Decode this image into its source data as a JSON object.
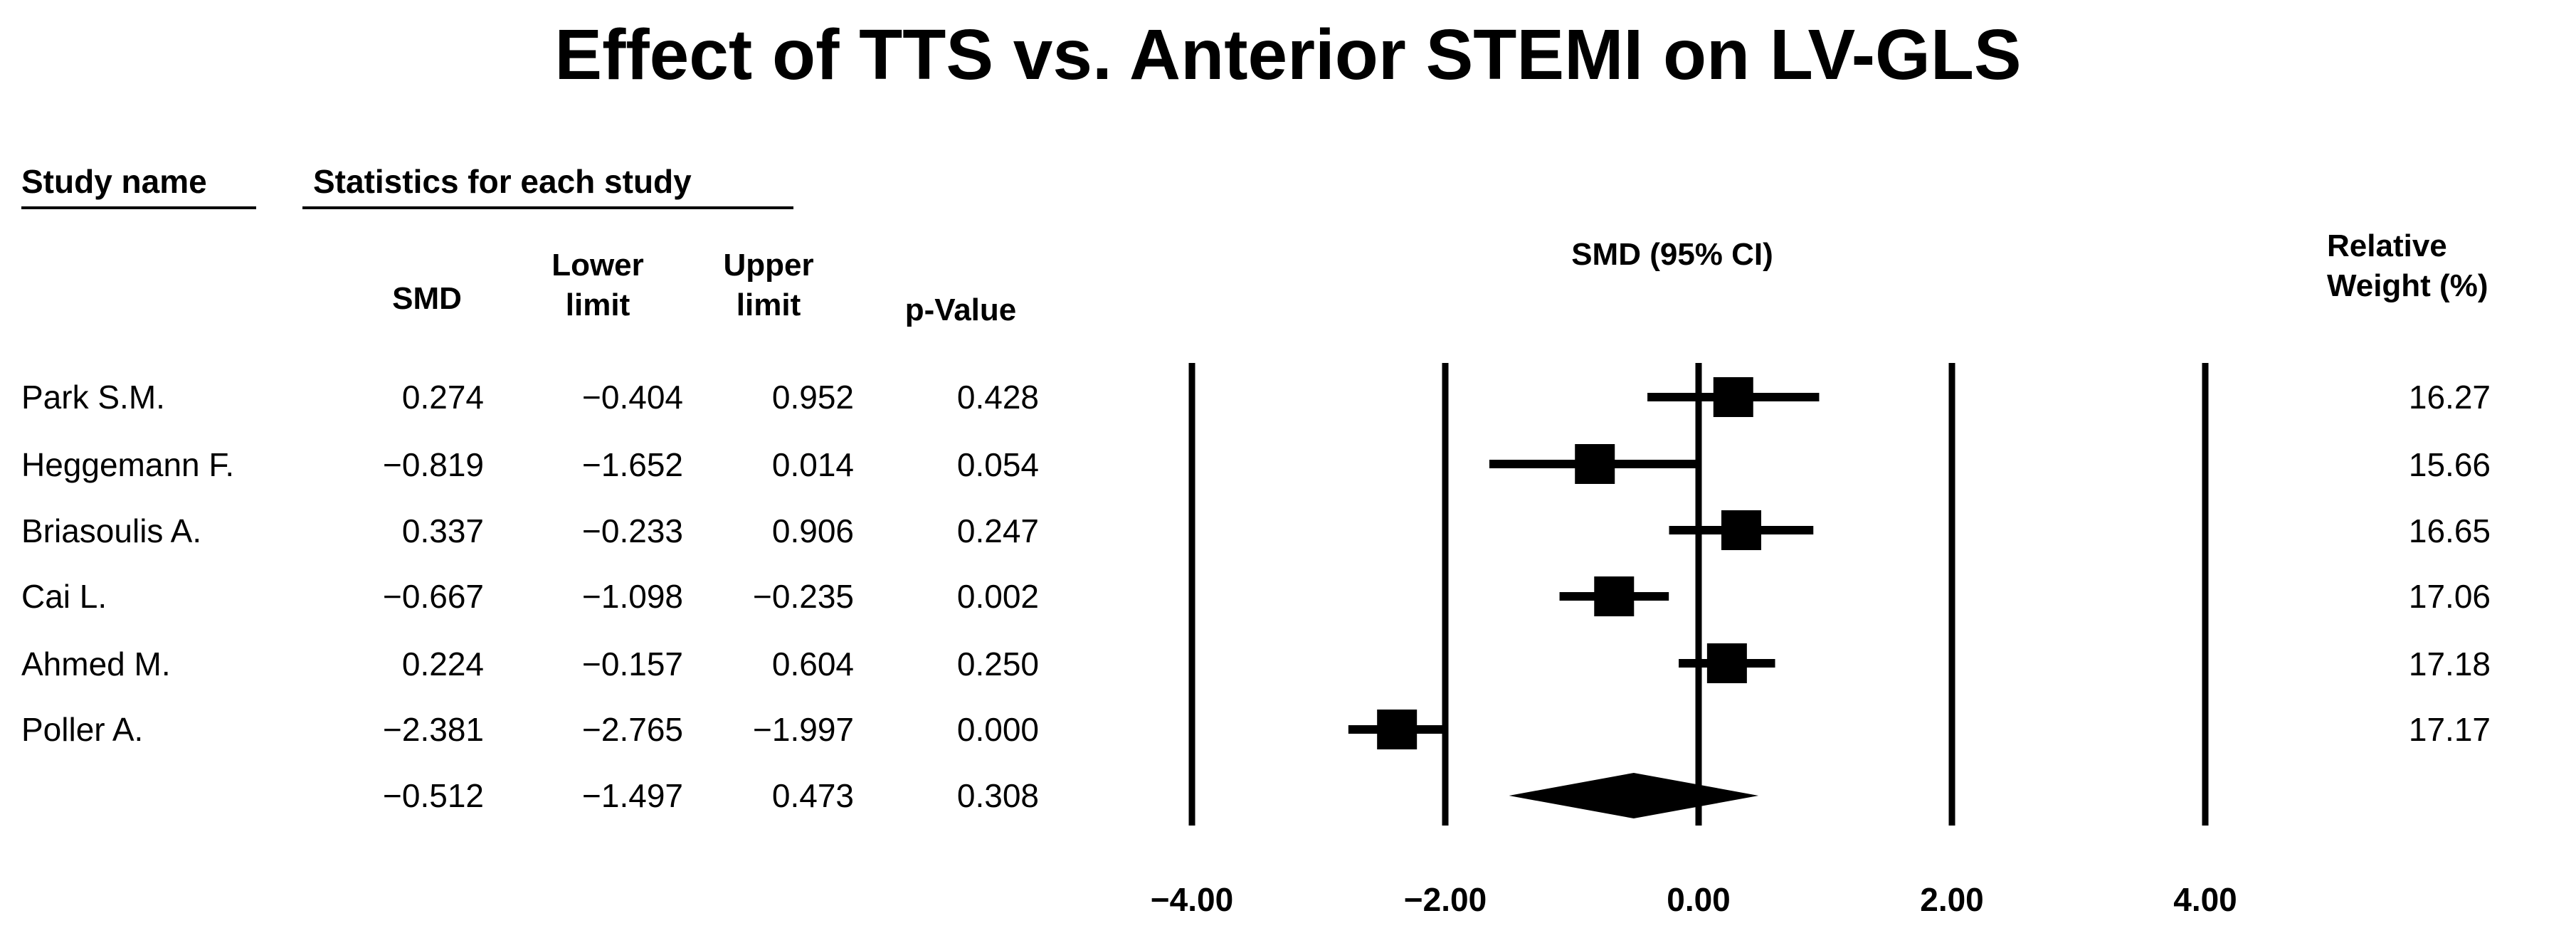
{
  "title": "Effect of TTS vs. Anterior STEMI on LV-GLS",
  "headers": {
    "study_name": "Study name",
    "statistics": "Statistics for each study",
    "smd": "SMD",
    "lower_1": "Lower",
    "lower_2": "limit",
    "upper_1": "Upper",
    "upper_2": "limit",
    "pvalue": "p-Value",
    "plot": "SMD (95% CI)",
    "weight_1": "Relative",
    "weight_2": "Weight (%)"
  },
  "rows": [
    {
      "name": "Park S.M.",
      "smd": "0.274",
      "lower": "−0.404",
      "upper": "0.952",
      "p": "0.428",
      "weight": "16.27"
    },
    {
      "name": "Heggemann F.",
      "smd": "−0.819",
      "lower": "−1.652",
      "upper": "0.014",
      "p": "0.054",
      "weight": "15.66"
    },
    {
      "name": "Briasoulis A.",
      "smd": "0.337",
      "lower": "−0.233",
      "upper": "0.906",
      "p": "0.247",
      "weight": "16.65"
    },
    {
      "name": "Cai L.",
      "smd": "−0.667",
      "lower": "−1.098",
      "upper": "−0.235",
      "p": "0.002",
      "weight": "17.06"
    },
    {
      "name": "Ahmed M.",
      "smd": "0.224",
      "lower": "−0.157",
      "upper": "0.604",
      "p": "0.250",
      "weight": "17.18"
    },
    {
      "name": "Poller A.",
      "smd": "−2.381",
      "lower": "−2.765",
      "upper": "−1.997",
      "p": "0.000",
      "weight": "17.17"
    }
  ],
  "summary": {
    "smd": "−0.512",
    "lower": "−1.497",
    "upper": "0.473",
    "p": "0.308"
  },
  "chart_data": {
    "type": "forest",
    "xlim": [
      -4,
      4
    ],
    "ticks": [
      -4,
      -2,
      0,
      2,
      4
    ],
    "tick_labels": [
      "−4.00",
      "−2.00",
      "0.00",
      "2.00",
      "4.00"
    ],
    "studies": [
      {
        "name": "Park S.M.",
        "smd": 0.274,
        "lower": -0.404,
        "upper": 0.952,
        "weight": 16.27
      },
      {
        "name": "Heggemann F.",
        "smd": -0.819,
        "lower": -1.652,
        "upper": 0.014,
        "weight": 15.66
      },
      {
        "name": "Briasoulis A.",
        "smd": 0.337,
        "lower": -0.233,
        "upper": 0.906,
        "weight": 16.65
      },
      {
        "name": "Cai L.",
        "smd": -0.667,
        "lower": -1.098,
        "upper": -0.235,
        "weight": 17.06
      },
      {
        "name": "Ahmed M.",
        "smd": 0.224,
        "lower": -0.157,
        "upper": 0.604,
        "weight": 17.18
      },
      {
        "name": "Poller A.",
        "smd": -2.381,
        "lower": -2.765,
        "upper": -1.997,
        "weight": 17.17
      }
    ],
    "pooled": {
      "smd": -0.512,
      "lower": -1.497,
      "upper": 0.473
    }
  }
}
